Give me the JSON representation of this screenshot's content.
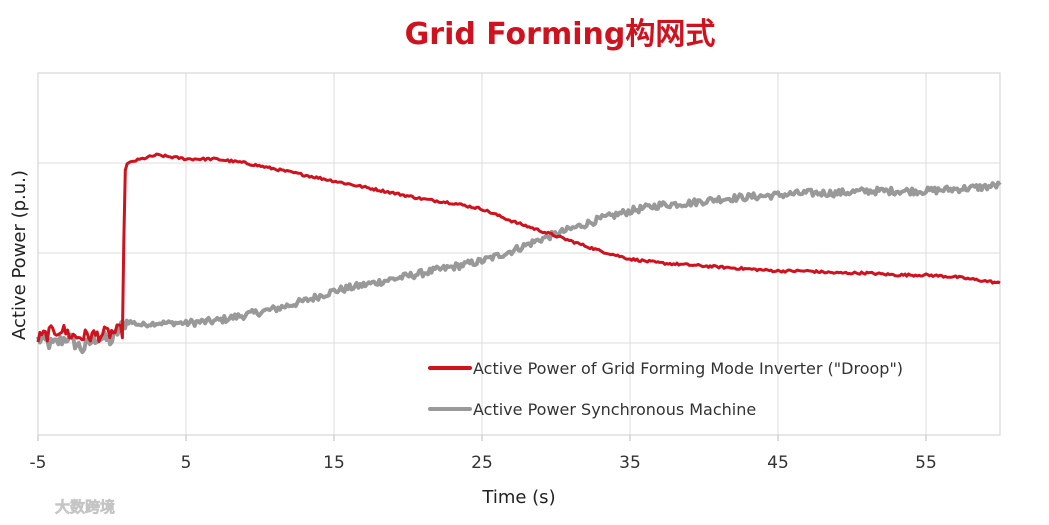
{
  "chart_data": {
    "type": "line",
    "title": "Grid Forming构网式",
    "xlabel": "Time (s)",
    "ylabel": "Active Power (p.u.)",
    "xlim": [
      -5,
      60
    ],
    "x_ticks": [
      -5,
      5,
      15,
      25,
      35,
      45,
      55
    ],
    "y_ticks_labeled": false,
    "grid": true,
    "legend_position": "bottom-right",
    "series": [
      {
        "name": "Active Power of Grid Forming Mode Inverter (\"Droop\")",
        "color": "#d0121f",
        "points": [
          [
            -5,
            0.03
          ],
          [
            -4.5,
            0.05
          ],
          [
            -3.5,
            0.08
          ],
          [
            -2.5,
            0.04
          ],
          [
            -1,
            0.05
          ],
          [
            0.7,
            0.07
          ],
          [
            0.9,
            0.9
          ],
          [
            1.5,
            0.92
          ],
          [
            3,
            0.95
          ],
          [
            5,
            0.93
          ],
          [
            7,
            0.93
          ],
          [
            9,
            0.91
          ],
          [
            11,
            0.88
          ],
          [
            13,
            0.85
          ],
          [
            15,
            0.82
          ],
          [
            17,
            0.79
          ],
          [
            19,
            0.76
          ],
          [
            21,
            0.73
          ],
          [
            23,
            0.71
          ],
          [
            25,
            0.68
          ],
          [
            27,
            0.62
          ],
          [
            29,
            0.57
          ],
          [
            31,
            0.52
          ],
          [
            33,
            0.47
          ],
          [
            35,
            0.43
          ],
          [
            37,
            0.41
          ],
          [
            39,
            0.4
          ],
          [
            41,
            0.39
          ],
          [
            43,
            0.38
          ],
          [
            45,
            0.37
          ],
          [
            47,
            0.37
          ],
          [
            49,
            0.36
          ],
          [
            51,
            0.36
          ],
          [
            53,
            0.35
          ],
          [
            55,
            0.35
          ],
          [
            57,
            0.34
          ],
          [
            59,
            0.32
          ],
          [
            60,
            0.31
          ]
        ]
      },
      {
        "name": "Active Power Synchronous Machine",
        "color": "#999999",
        "points": [
          [
            -5,
            0.03
          ],
          [
            -4,
            0.0
          ],
          [
            -3,
            0.04
          ],
          [
            -2,
            -0.02
          ],
          [
            -1,
            0.04
          ],
          [
            0,
            0.02
          ],
          [
            0.5,
            0.08
          ],
          [
            1,
            0.12
          ],
          [
            2,
            0.1
          ],
          [
            3,
            0.11
          ],
          [
            5,
            0.11
          ],
          [
            7,
            0.12
          ],
          [
            9,
            0.15
          ],
          [
            11,
            0.18
          ],
          [
            13,
            0.22
          ],
          [
            15,
            0.27
          ],
          [
            17,
            0.3
          ],
          [
            19,
            0.33
          ],
          [
            21,
            0.36
          ],
          [
            23,
            0.39
          ],
          [
            25,
            0.42
          ],
          [
            27,
            0.47
          ],
          [
            29,
            0.53
          ],
          [
            31,
            0.58
          ],
          [
            33,
            0.63
          ],
          [
            35,
            0.67
          ],
          [
            37,
            0.7
          ],
          [
            39,
            0.71
          ],
          [
            41,
            0.73
          ],
          [
            43,
            0.74
          ],
          [
            45,
            0.75
          ],
          [
            47,
            0.76
          ],
          [
            49,
            0.76
          ],
          [
            51,
            0.77
          ],
          [
            53,
            0.77
          ],
          [
            55,
            0.77
          ],
          [
            57,
            0.78
          ],
          [
            59,
            0.79
          ],
          [
            60,
            0.8
          ]
        ]
      }
    ]
  },
  "watermark": {
    "text": "大数跨境"
  }
}
